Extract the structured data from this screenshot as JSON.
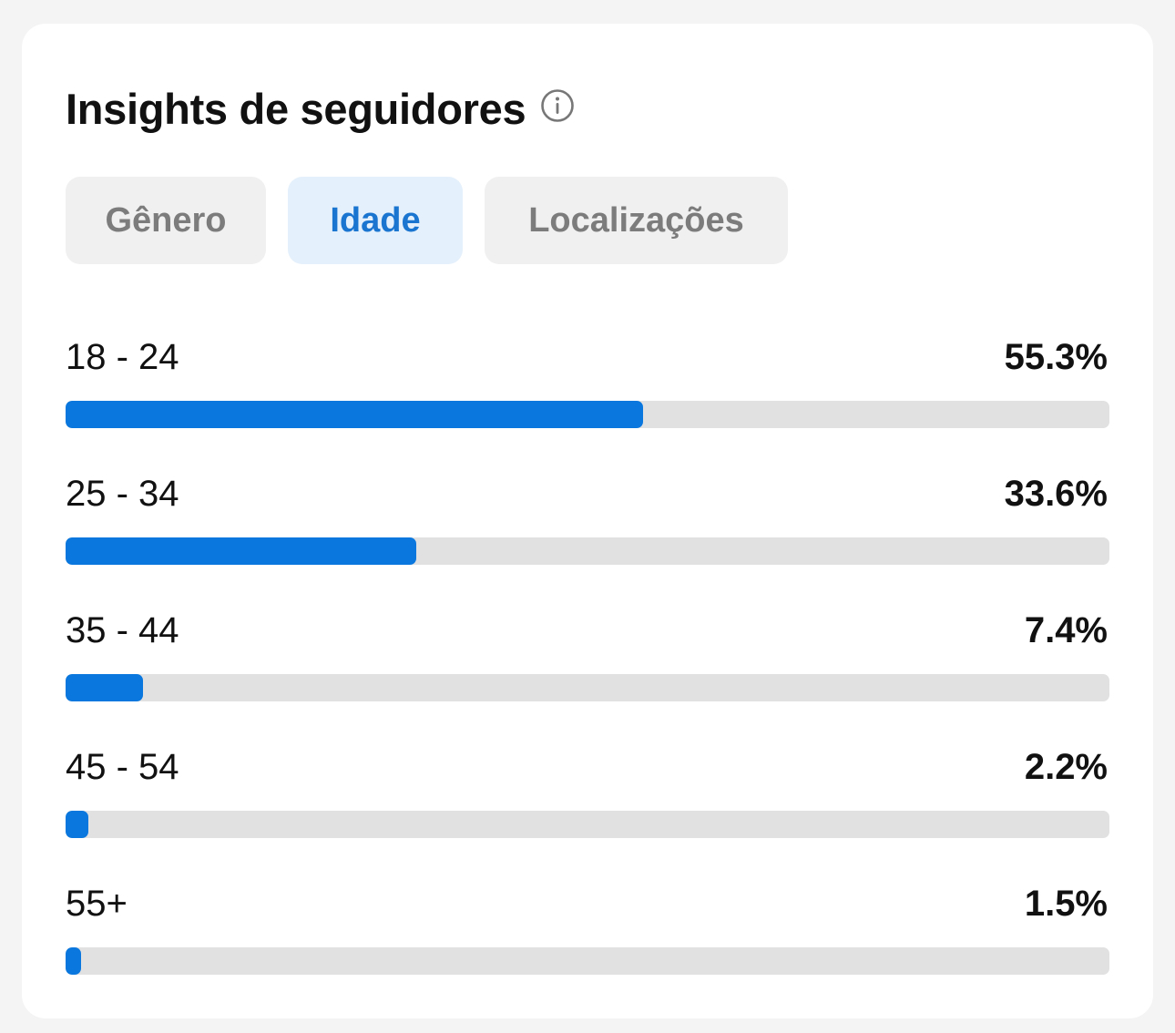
{
  "header": {
    "title": "Insights de seguidores",
    "info_icon": "info-circle-icon"
  },
  "tabs": [
    {
      "label": "Gênero",
      "active": false
    },
    {
      "label": "Idade",
      "active": true
    },
    {
      "label": "Localizações",
      "active": false
    }
  ],
  "colors": {
    "accent": "#0a77de",
    "track": "#e1e1e1",
    "active_tab_bg": "#e4f0fb"
  },
  "age_groups": [
    {
      "label": "18 - 24",
      "value": "55.3%",
      "percent": 55.3
    },
    {
      "label": "25 - 34",
      "value": "33.6%",
      "percent": 33.6
    },
    {
      "label": "35 - 44",
      "value": "7.4%",
      "percent": 7.4
    },
    {
      "label": "45 - 54",
      "value": "2.2%",
      "percent": 2.2
    },
    {
      "label": "55+",
      "value": "1.5%",
      "percent": 1.5
    }
  ]
}
